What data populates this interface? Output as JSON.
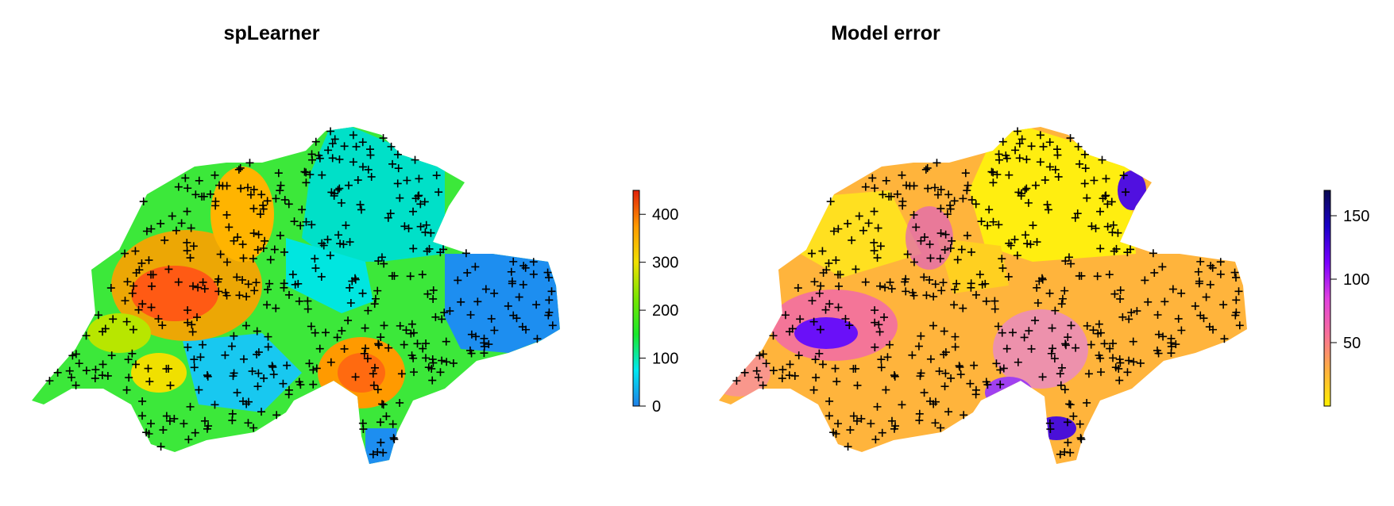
{
  "panels": [
    {
      "id": "splearner",
      "title": "spLearner",
      "legend": {
        "ticks": [
          "0",
          "100",
          "200",
          "300",
          "400"
        ],
        "tick_values": [
          0,
          100,
          200,
          300,
          400
        ],
        "range": [
          0,
          450
        ],
        "colors": [
          "#1f7fe8",
          "#00e8f0",
          "#19e82a",
          "#78e600",
          "#f0e000",
          "#ff9a00",
          "#e0200a"
        ]
      }
    },
    {
      "id": "model-error",
      "title": "Model error",
      "legend": {
        "ticks": [
          "50",
          "100",
          "150"
        ],
        "tick_values": [
          50,
          100,
          150
        ],
        "range": [
          0,
          170
        ],
        "colors": [
          "#fff000",
          "#ffb040",
          "#f8709a",
          "#e040e0",
          "#7a00ff",
          "#1a00c8",
          "#0a0a50"
        ]
      }
    }
  ],
  "marker": "+"
}
